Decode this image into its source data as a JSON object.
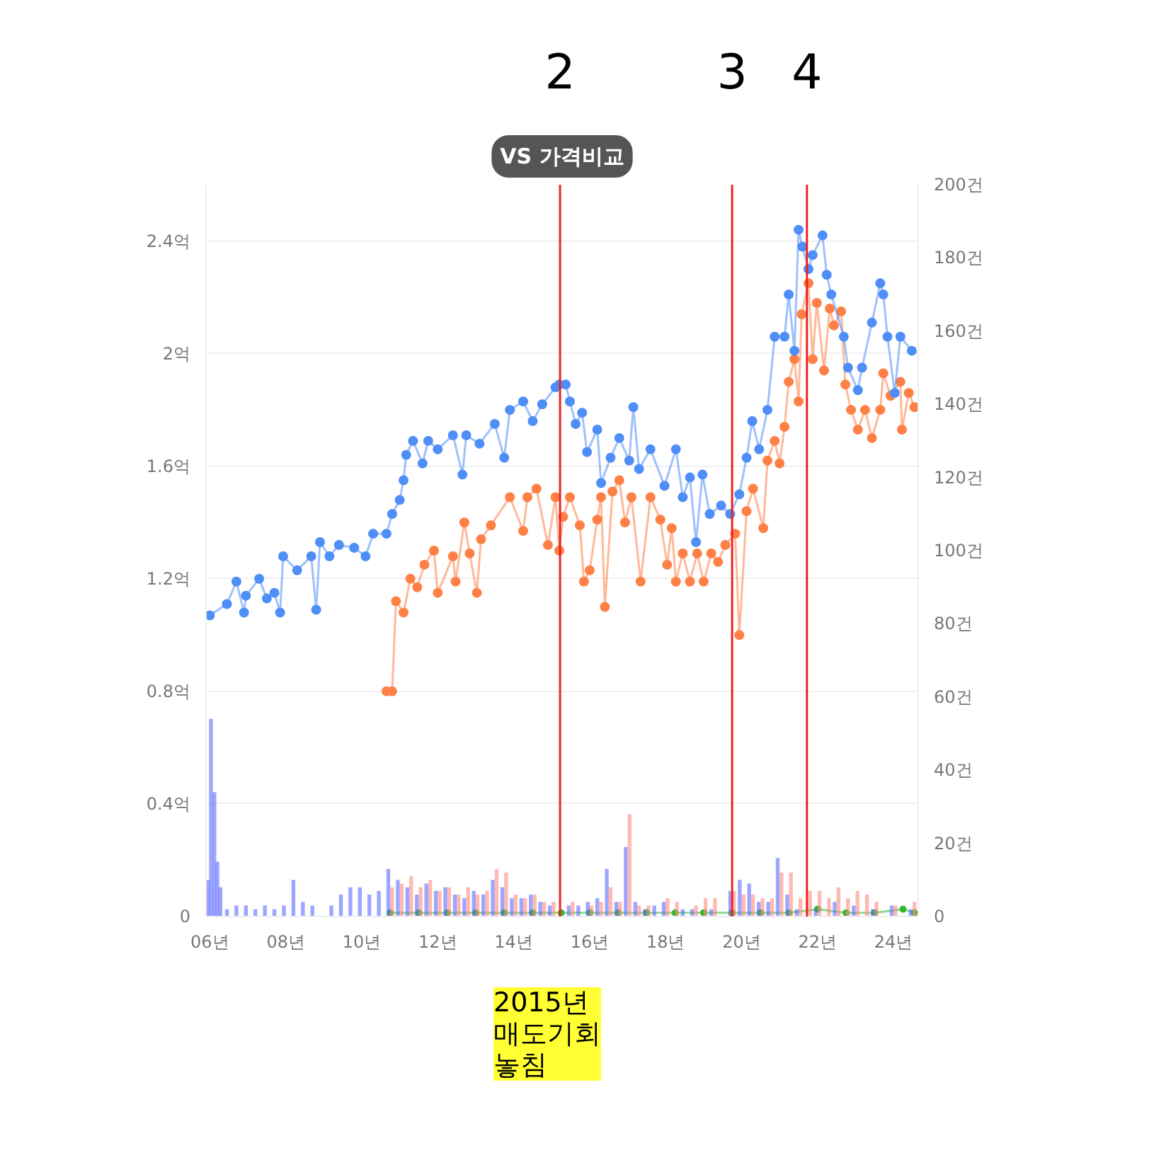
{
  "chart_data": {
    "type": "line",
    "title": "VS 가격비교",
    "xlim": [
      5.9,
      24.65
    ],
    "xticks": [
      {
        "value": 6,
        "label": "06년"
      },
      {
        "value": 8,
        "label": "08년"
      },
      {
        "value": 10,
        "label": "10년"
      },
      {
        "value": 12,
        "label": "12년"
      },
      {
        "value": 14,
        "label": "14년"
      },
      {
        "value": 16,
        "label": "16년"
      },
      {
        "value": 18,
        "label": "18년"
      },
      {
        "value": 20,
        "label": "20년"
      },
      {
        "value": 22,
        "label": "22년"
      },
      {
        "value": 24,
        "label": "24년"
      }
    ],
    "ylim": [
      0,
      2.6
    ],
    "yticks": [
      0,
      {
        "value": 0.4,
        "label": "0.4억"
      },
      {
        "value": 0.8,
        "label": "0.8억"
      },
      {
        "value": 1.2,
        "label": "1.2억"
      },
      {
        "value": 1.6,
        "label": "1.6억"
      },
      {
        "value": 2,
        "label": "2억"
      },
      {
        "value": 2.4,
        "label": "2.4억"
      }
    ],
    "y2lim": [
      0,
      200
    ],
    "y2ticks": [
      0,
      {
        "value": 20,
        "label": "20건"
      },
      {
        "value": 40,
        "label": "40건"
      },
      {
        "value": 60,
        "label": "60건"
      },
      {
        "value": 80,
        "label": "80건"
      },
      {
        "value": 100,
        "label": "100건"
      },
      {
        "value": 120,
        "label": "120건"
      },
      {
        "value": 140,
        "label": "140건"
      },
      {
        "value": 160,
        "label": "160건"
      },
      {
        "value": 180,
        "label": "180건"
      },
      {
        "value": 200,
        "label": "200건"
      }
    ],
    "grid": "y",
    "marker": "circle",
    "line_style": "solid",
    "series": [
      {
        "type": "bar",
        "axis": "y2",
        "color": "#5a6bff",
        "x": [
          6.0,
          6.08,
          6.17,
          6.25,
          6.33,
          6.5,
          6.75,
          7.0,
          7.25,
          7.5,
          7.75,
          8.0,
          8.25,
          8.5,
          8.75,
          9.25,
          9.5,
          9.75,
          10.0,
          10.25,
          10.5,
          10.75,
          11.0,
          11.25,
          11.5,
          11.75,
          12.0,
          12.25,
          12.5,
          12.75,
          13.0,
          13.25,
          13.5,
          13.75,
          14.0,
          14.25,
          14.5,
          14.75,
          15.0,
          15.5,
          15.75,
          16.0,
          16.25,
          16.5,
          16.75,
          17.0,
          17.25,
          17.5,
          17.75,
          18.0,
          18.5,
          18.75,
          19.25,
          19.75,
          20.0,
          20.25,
          20.5,
          20.75,
          21.0,
          21.25,
          21.5,
          22.0,
          22.5,
          23.0,
          23.5,
          24.0,
          24.5
        ],
        "values": [
          10,
          54,
          34,
          15,
          8,
          2,
          3,
          3,
          2,
          3,
          2,
          3,
          10,
          4,
          3,
          3,
          6,
          8,
          8,
          6,
          7,
          13,
          10,
          8,
          6,
          9,
          7,
          8,
          6,
          5,
          7,
          6,
          10,
          8,
          5,
          5,
          6,
          4,
          3,
          3,
          3,
          4,
          5,
          13,
          4,
          19,
          4,
          2,
          3,
          4,
          2,
          2,
          2,
          7,
          10,
          9,
          4,
          4,
          16,
          6,
          2,
          2,
          4,
          3,
          2,
          3,
          2
        ]
      },
      {
        "type": "bar",
        "axis": "y2",
        "color": "#ff8a80",
        "x": [
          10.75,
          11.0,
          11.25,
          11.5,
          11.75,
          12.0,
          12.25,
          12.5,
          12.75,
          13.0,
          13.25,
          13.5,
          13.75,
          14.0,
          14.25,
          14.5,
          14.75,
          15.0,
          15.5,
          16.0,
          16.25,
          16.5,
          16.75,
          17.0,
          17.25,
          17.5,
          18.0,
          18.25,
          18.75,
          19.0,
          19.25,
          19.75,
          20.0,
          20.25,
          20.5,
          20.75,
          21.0,
          21.25,
          21.5,
          21.75,
          22.0,
          22.25,
          22.5,
          22.75,
          23.0,
          23.25,
          23.5,
          24.0,
          24.5
        ],
        "values": [
          8,
          9,
          11,
          8,
          10,
          7,
          8,
          6,
          8,
          6,
          7,
          13,
          12,
          6,
          5,
          6,
          4,
          4,
          4,
          3,
          4,
          8,
          4,
          28,
          3,
          3,
          5,
          4,
          3,
          5,
          5,
          7,
          6,
          6,
          5,
          5,
          12,
          12,
          5,
          7,
          7,
          5,
          8,
          5,
          7,
          6,
          4,
          3,
          4
        ]
      },
      {
        "axis": "y2",
        "color": "#33b833",
        "x": [
          10.75,
          11.5,
          12.25,
          13.0,
          13.75,
          14.5,
          15.25,
          16.0,
          16.75,
          17.5,
          18.25,
          19.0,
          19.75,
          20.5,
          21.25,
          22.0,
          22.75,
          23.5,
          24.25,
          24.55
        ],
        "values": [
          1,
          1,
          1,
          1,
          1,
          1,
          1,
          1,
          1,
          1,
          1,
          1,
          1,
          1,
          1,
          2,
          1,
          1,
          2,
          1
        ]
      },
      {
        "color": "#ff8046",
        "x": [
          10.65,
          10.8,
          10.9,
          11.1,
          11.28,
          11.46,
          11.65,
          11.9,
          12.0,
          12.4,
          12.47,
          12.7,
          12.84,
          13.03,
          13.14,
          13.4,
          13.9,
          14.25,
          14.36,
          14.6,
          14.9,
          15.1,
          15.2,
          15.3,
          15.48,
          15.74,
          15.85,
          16.0,
          16.2,
          16.3,
          16.4,
          16.6,
          16.78,
          16.93,
          17.1,
          17.34,
          17.6,
          17.86,
          18.04,
          18.16,
          18.27,
          18.45,
          18.64,
          18.83,
          19.0,
          19.2,
          19.38,
          19.57,
          19.83,
          19.94,
          20.13,
          20.3,
          20.57,
          20.68,
          20.87,
          21.0,
          21.13,
          21.24,
          21.39,
          21.5,
          21.58,
          21.76,
          21.87,
          21.98,
          22.17,
          22.32,
          22.43,
          22.62,
          22.73,
          22.88,
          23.06,
          23.25,
          23.43,
          23.65,
          23.73,
          23.92,
          24.18,
          24.22,
          24.4,
          24.55
        ],
        "values": [
          0.8,
          0.8,
          1.12,
          1.08,
          1.2,
          1.17,
          1.25,
          1.3,
          1.15,
          1.28,
          1.19,
          1.4,
          1.29,
          1.15,
          1.34,
          1.39,
          1.49,
          1.37,
          1.49,
          1.52,
          1.32,
          1.49,
          1.3,
          1.42,
          1.49,
          1.39,
          1.19,
          1.23,
          1.41,
          1.49,
          1.1,
          1.51,
          1.55,
          1.4,
          1.49,
          1.19,
          1.49,
          1.41,
          1.25,
          1.38,
          1.19,
          1.29,
          1.19,
          1.29,
          1.19,
          1.29,
          1.26,
          1.32,
          1.36,
          1.0,
          1.44,
          1.52,
          1.38,
          1.62,
          1.69,
          1.61,
          1.74,
          1.9,
          1.98,
          1.83,
          2.14,
          2.25,
          1.98,
          2.18,
          1.94,
          2.16,
          2.1,
          2.15,
          1.89,
          1.8,
          1.73,
          1.8,
          1.7,
          1.8,
          1.93,
          1.85,
          1.9,
          1.73,
          1.86,
          1.81
        ]
      },
      {
        "color": "#4f8ef7",
        "x": [
          6.0,
          6.45,
          6.7,
          6.9,
          6.95,
          7.3,
          7.5,
          7.7,
          7.85,
          7.93,
          8.3,
          8.67,
          8.8,
          8.9,
          9.15,
          9.4,
          9.8,
          10.1,
          10.3,
          10.65,
          10.8,
          11.0,
          11.1,
          11.17,
          11.35,
          11.6,
          11.75,
          12.0,
          12.4,
          12.65,
          12.75,
          13.1,
          13.5,
          13.75,
          13.9,
          14.25,
          14.5,
          14.75,
          15.1,
          15.2,
          15.37,
          15.48,
          15.63,
          15.8,
          15.93,
          16.2,
          16.3,
          16.55,
          16.78,
          17.04,
          17.15,
          17.3,
          17.6,
          17.97,
          18.27,
          18.45,
          18.64,
          18.8,
          18.97,
          19.16,
          19.46,
          19.7,
          19.94,
          20.13,
          20.28,
          20.46,
          20.68,
          20.87,
          21.13,
          21.24,
          21.39,
          21.5,
          21.6,
          21.76,
          21.87,
          22.13,
          22.24,
          22.36,
          22.69,
          22.8,
          23.06,
          23.17,
          23.43,
          23.65,
          23.73,
          23.84,
          24.03,
          24.18,
          24.48
        ],
        "values": [
          1.07,
          1.11,
          1.19,
          1.08,
          1.14,
          1.2,
          1.13,
          1.15,
          1.08,
          1.28,
          1.23,
          1.28,
          1.09,
          1.33,
          1.28,
          1.32,
          1.31,
          1.28,
          1.36,
          1.36,
          1.43,
          1.48,
          1.55,
          1.64,
          1.69,
          1.61,
          1.69,
          1.66,
          1.71,
          1.57,
          1.71,
          1.68,
          1.75,
          1.63,
          1.8,
          1.83,
          1.76,
          1.82,
          1.88,
          1.89,
          1.89,
          1.83,
          1.75,
          1.79,
          1.65,
          1.73,
          1.54,
          1.63,
          1.7,
          1.62,
          1.81,
          1.59,
          1.66,
          1.53,
          1.66,
          1.49,
          1.56,
          1.33,
          1.57,
          1.43,
          1.46,
          1.43,
          1.5,
          1.63,
          1.76,
          1.66,
          1.8,
          2.06,
          2.06,
          2.21,
          2.01,
          2.44,
          2.38,
          2.3,
          2.35,
          2.42,
          2.28,
          2.21,
          2.06,
          1.95,
          1.87,
          1.95,
          2.11,
          2.25,
          2.21,
          2.06,
          1.86,
          2.06,
          2.01
        ]
      }
    ],
    "ref_lines": [
      {
        "axis": "x",
        "value": 15.22,
        "color": "#ee2222"
      },
      {
        "axis": "x",
        "value": 19.75,
        "color": "#ee2222"
      },
      {
        "axis": "x",
        "value": 21.72,
        "color": "#ee2222"
      }
    ],
    "annotations": [
      "2",
      "3",
      "4",
      "2015년\n매도기회\n놓침"
    ]
  }
}
